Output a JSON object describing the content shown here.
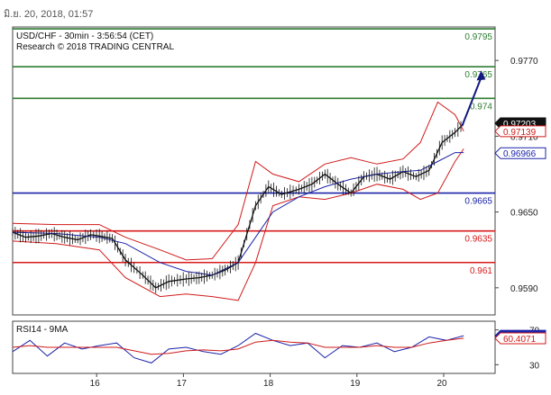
{
  "timestamp": "มิ.ย. 20, 2018, 01:57",
  "header": {
    "line1": "USD/CHF - 30min - 3:56:54 (CET)",
    "line2": "Research © 2018 TRADING CENTRAL"
  },
  "colors": {
    "resistance": "#2e7d32",
    "support_blue": "#1a23a8",
    "support_red": "#d81b1b",
    "bollinger": "#d11a1a",
    "ma": "#1a23a8",
    "price": "#111111",
    "arrow": "#141a7e",
    "rsi": "#1a23a8",
    "rsi_ma": "#d11a1a"
  },
  "chart_data": [
    {
      "type": "line",
      "title": "USD/CHF - 30min - 3:56:54 (CET)",
      "subtitle": "Research © 2018 TRADING CENTRAL",
      "x_ticks": [
        "16",
        "17",
        "18",
        "19",
        "20"
      ],
      "y_ticks": [
        "0.9770",
        "0.9710",
        "0.9650",
        "0.9590"
      ],
      "y_tick_values": [
        0.977,
        0.971,
        0.965,
        0.959
      ],
      "ylim": [
        0.95685,
        0.97965
      ],
      "grid": false,
      "levels": [
        {
          "label": "0.9795",
          "value": 0.9795,
          "kind": "resistance"
        },
        {
          "label": "0.9765",
          "value": 0.9765,
          "kind": "resistance"
        },
        {
          "label": "0.974",
          "value": 0.974,
          "kind": "resistance"
        },
        {
          "label": "0.9665",
          "value": 0.9665,
          "kind": "support_blue"
        },
        {
          "label": "0.9635",
          "value": 0.9635,
          "kind": "support_red"
        },
        {
          "label": "0.961",
          "value": 0.961,
          "kind": "support_red"
        }
      ],
      "price_tags": [
        {
          "label": "0.97203",
          "value": 0.97203,
          "style": "last"
        },
        {
          "label": "0.97139",
          "value": 0.97139,
          "style": "upper_band"
        },
        {
          "label": "0.96966",
          "value": 0.96966,
          "style": "ma"
        }
      ],
      "series": [
        {
          "name": "price",
          "x": [
            0,
            0.15,
            0.3,
            0.45,
            0.6,
            0.75,
            0.9,
            1.0,
            1.15,
            1.3,
            1.5,
            1.65,
            1.8,
            2.0,
            2.15,
            2.3,
            2.45,
            2.6,
            2.8,
            2.95,
            3.1,
            3.3,
            3.45,
            3.6,
            3.75,
            3.9,
            4.05,
            4.2,
            4.35,
            4.5,
            4.65,
            4.8,
            4.95,
            5.1,
            5.2
          ],
          "y": [
            0.9634,
            0.963,
            0.9631,
            0.9633,
            0.963,
            0.9628,
            0.9632,
            0.9631,
            0.9629,
            0.9612,
            0.96,
            0.959,
            0.9595,
            0.9597,
            0.9598,
            0.96,
            0.9604,
            0.961,
            0.9655,
            0.967,
            0.9664,
            0.9668,
            0.9672,
            0.968,
            0.9672,
            0.9665,
            0.9678,
            0.968,
            0.9676,
            0.9682,
            0.9678,
            0.9683,
            0.9705,
            0.9713,
            0.972
          ]
        },
        {
          "name": "upper_band",
          "x": [
            0,
            0.5,
            1.0,
            1.3,
            1.7,
            2.0,
            2.3,
            2.6,
            2.8,
            3.0,
            3.3,
            3.6,
            3.9,
            4.2,
            4.5,
            4.7,
            4.9,
            5.1,
            5.2
          ],
          "y": [
            0.9641,
            0.964,
            0.964,
            0.963,
            0.962,
            0.9612,
            0.9613,
            0.964,
            0.969,
            0.968,
            0.9674,
            0.9688,
            0.9693,
            0.9688,
            0.9692,
            0.9705,
            0.9737,
            0.9727,
            0.9714
          ]
        },
        {
          "name": "lower_band",
          "x": [
            0,
            0.5,
            1.0,
            1.3,
            1.7,
            2.0,
            2.3,
            2.6,
            2.8,
            3.0,
            3.3,
            3.6,
            3.9,
            4.2,
            4.5,
            4.7,
            4.9,
            5.1,
            5.2
          ],
          "y": [
            0.9627,
            0.9625,
            0.962,
            0.9598,
            0.9583,
            0.9585,
            0.9583,
            0.958,
            0.961,
            0.9655,
            0.9662,
            0.966,
            0.9665,
            0.9672,
            0.9668,
            0.966,
            0.9665,
            0.969,
            0.97
          ]
        },
        {
          "name": "ma",
          "x": [
            0,
            0.5,
            1.0,
            1.3,
            1.7,
            2.0,
            2.3,
            2.6,
            2.8,
            3.0,
            3.3,
            3.6,
            3.9,
            4.2,
            4.5,
            4.7,
            4.9,
            5.1,
            5.2
          ],
          "y": [
            0.9634,
            0.9633,
            0.963,
            0.9625,
            0.961,
            0.9603,
            0.96,
            0.961,
            0.963,
            0.965,
            0.9662,
            0.967,
            0.9676,
            0.968,
            0.9682,
            0.9683,
            0.969,
            0.9697,
            0.9697
          ]
        }
      ],
      "forecast_arrow": {
        "from": {
          "x": 5.18,
          "y": 0.9718
        },
        "to": {
          "x": 5.4,
          "y": 0.9762
        }
      }
    },
    {
      "type": "line",
      "title": "RSI14 - 9MA",
      "x_ticks": [
        "16",
        "17",
        "18",
        "19",
        "20"
      ],
      "y_ticks": [
        "70",
        "30"
      ],
      "y_tick_values": [
        70,
        30
      ],
      "ylim": [
        20,
        80
      ],
      "grid": false,
      "price_tags": [
        {
          "label": "63.2722",
          "value": 63.2722,
          "style": "rsi"
        },
        {
          "label": "60.4071",
          "value": 60.4071,
          "style": "rsi_ma"
        }
      ],
      "series": [
        {
          "name": "rsi",
          "x": [
            0,
            0.2,
            0.4,
            0.6,
            0.8,
            1.0,
            1.2,
            1.4,
            1.6,
            1.8,
            2.0,
            2.2,
            2.4,
            2.6,
            2.8,
            3.0,
            3.2,
            3.4,
            3.6,
            3.8,
            4.0,
            4.2,
            4.4,
            4.6,
            4.8,
            5.0,
            5.2
          ],
          "y": [
            45,
            58,
            40,
            55,
            48,
            52,
            55,
            38,
            32,
            48,
            50,
            45,
            42,
            52,
            66,
            58,
            52,
            55,
            38,
            52,
            50,
            55,
            45,
            50,
            62,
            58,
            63.3
          ]
        },
        {
          "name": "rsi_ma",
          "x": [
            0,
            0.2,
            0.4,
            0.6,
            0.8,
            1.0,
            1.2,
            1.4,
            1.6,
            1.8,
            2.0,
            2.2,
            2.4,
            2.6,
            2.8,
            3.0,
            3.2,
            3.4,
            3.6,
            3.8,
            4.0,
            4.2,
            4.4,
            4.6,
            4.8,
            5.0,
            5.2
          ],
          "y": [
            50,
            52,
            50,
            50,
            50,
            50,
            50,
            46,
            42,
            43,
            46,
            47,
            46,
            48,
            56,
            58,
            56,
            55,
            50,
            50,
            50,
            52,
            50,
            50,
            55,
            58,
            60.4
          ]
        }
      ]
    }
  ]
}
